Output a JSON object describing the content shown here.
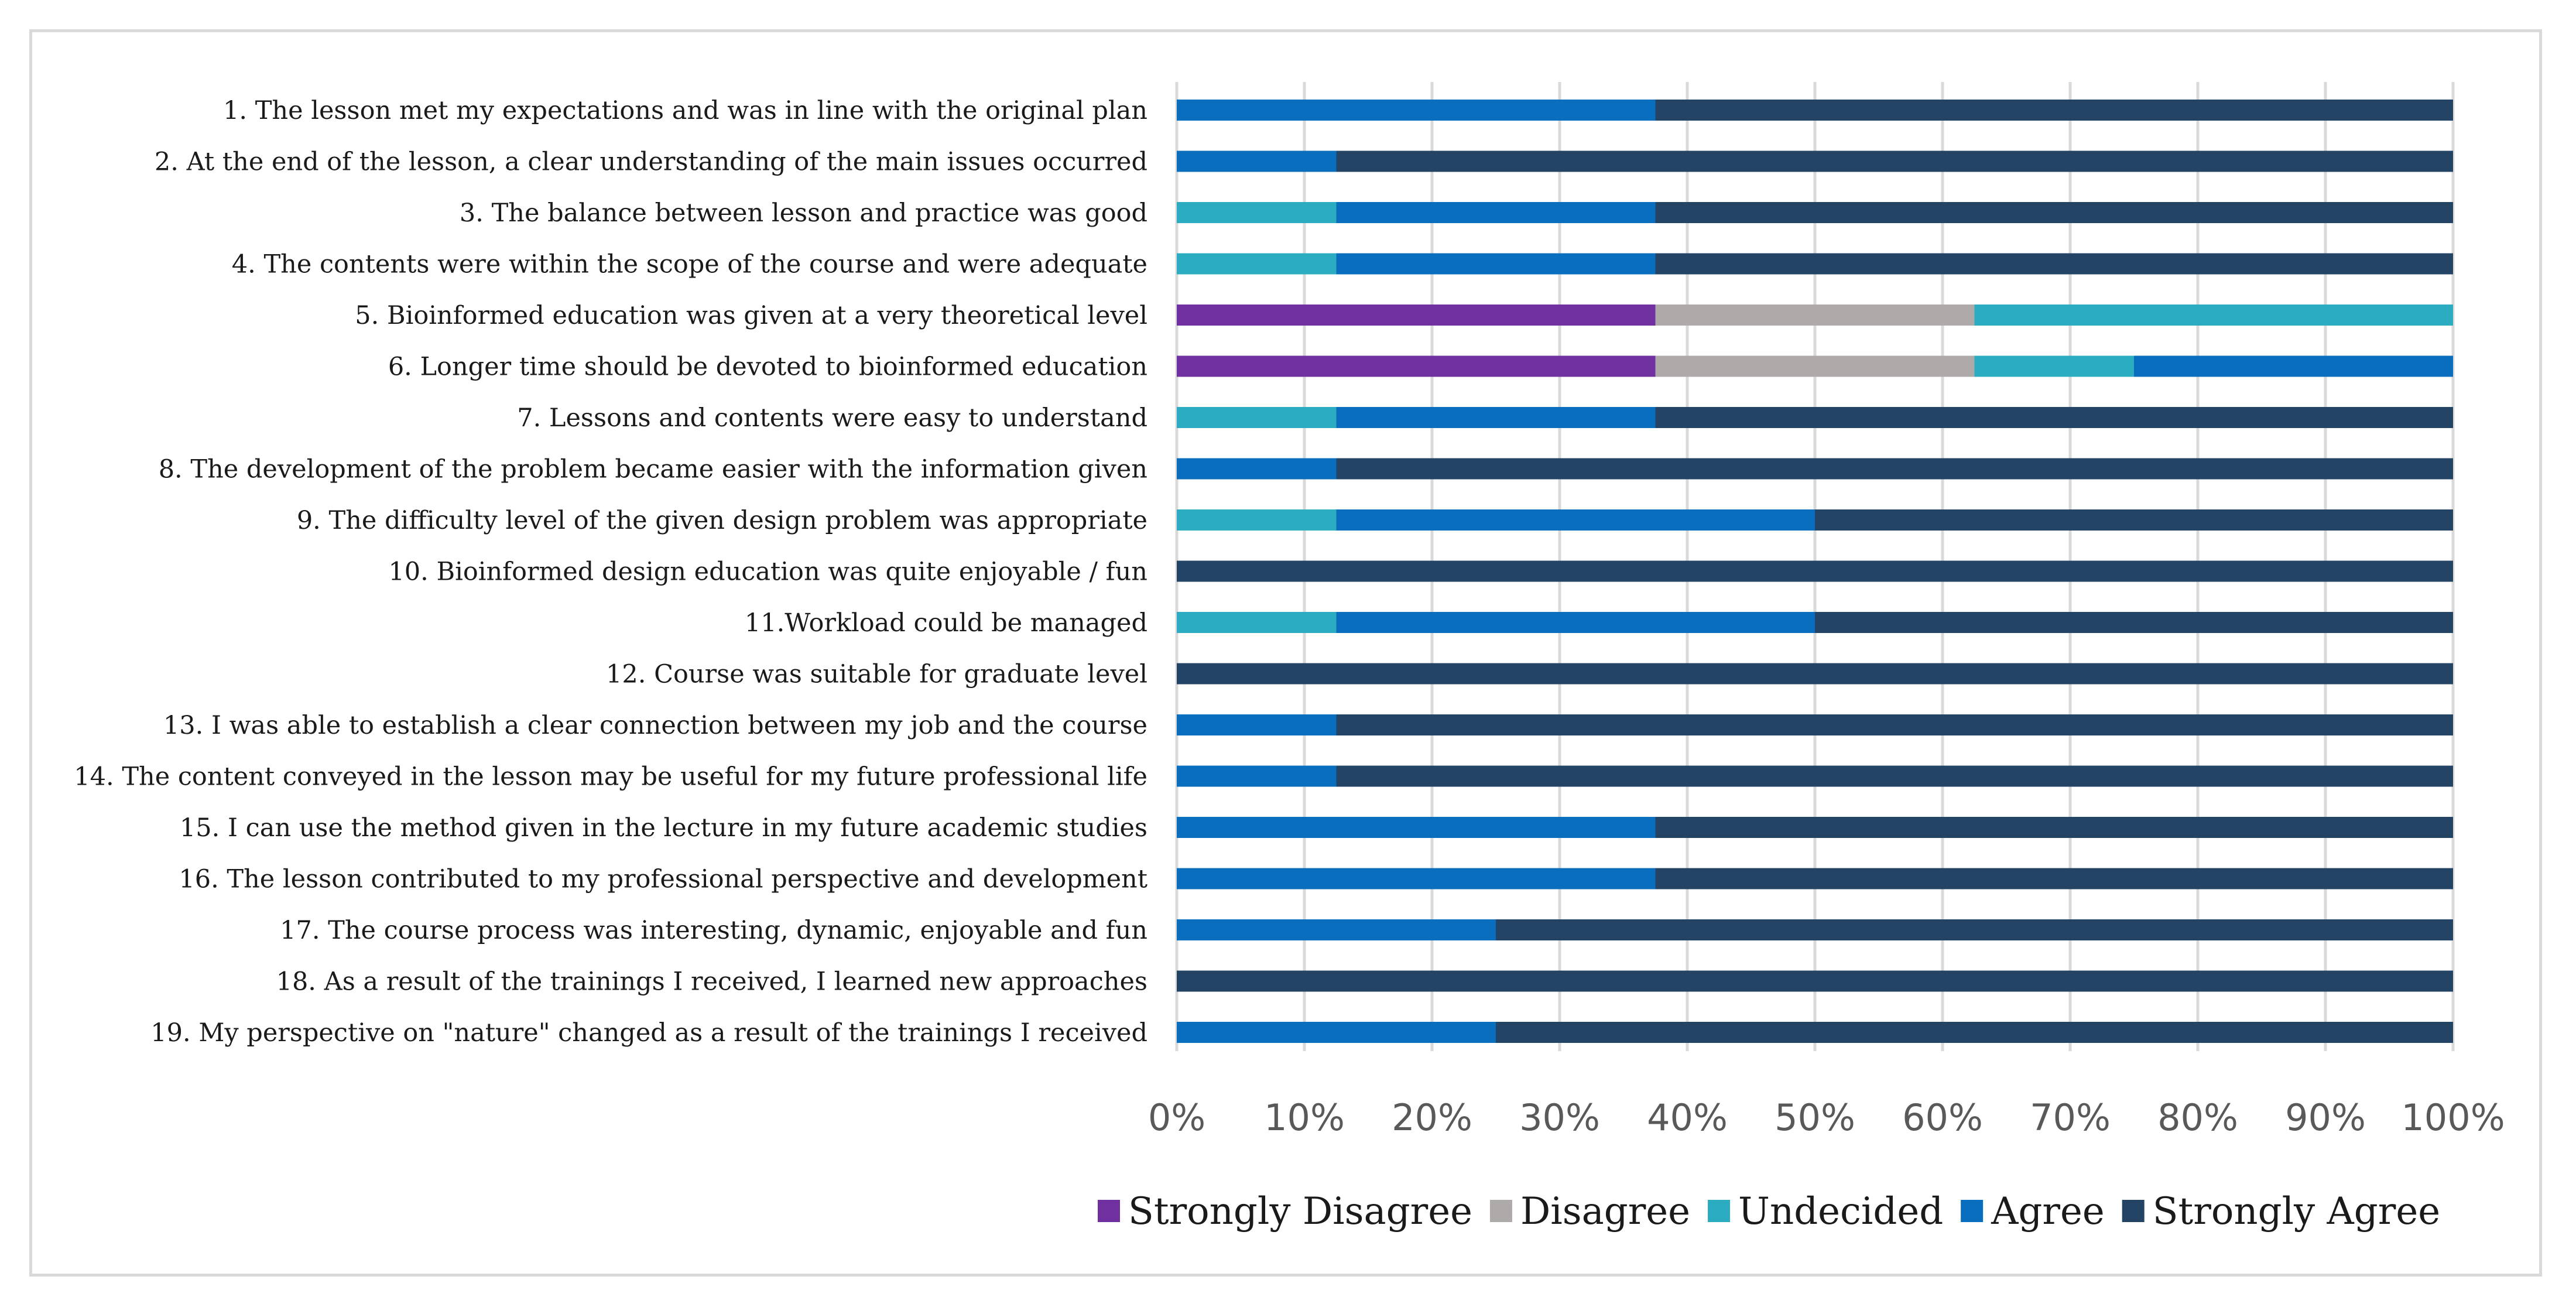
{
  "chart_data": {
    "type": "bar",
    "orientation": "horizontal",
    "stacked": "percent",
    "categories": [
      "1. The lesson met my expectations and was in line with the original plan",
      "2. At the end of the lesson, a clear understanding of the main issues occurred",
      "3. The balance between lesson and practice was good",
      "4. The contents were within the scope of the course and were adequate",
      "5. Bioinformed education was given at a very theoretical level",
      "6. Longer time should be devoted to bioinformed education",
      "7. Lessons and contents were easy to understand",
      "8. The development of the problem became easier with the information given",
      "9. The difficulty level of the given design problem was appropriate",
      "10. Bioinformed design education was quite enjoyable / fun",
      "11.Workload could be managed",
      "12. Course was suitable for graduate level",
      "13. I was able to establish a clear connection between my job and the course",
      "14. The content conveyed in the lesson may be useful for my future professional life",
      "15. I can use the method given in the lecture in my future academic studies",
      "16. The lesson contributed to my professional perspective and development",
      "17. The course process was interesting, dynamic, enjoyable and fun",
      "18. As a result of the trainings I received, I learned new approaches",
      "19. My perspective on \"nature\" changed as a result of the trainings I received"
    ],
    "series": [
      {
        "name": "Strongly Disagree",
        "color": "#7030a0",
        "values": [
          0,
          0,
          0,
          0,
          37.5,
          37.5,
          0,
          0,
          0,
          0,
          0,
          0,
          0,
          0,
          0,
          0,
          0,
          0,
          0
        ]
      },
      {
        "name": "Disagree",
        "color": "#aeaaaa",
        "values": [
          0,
          0,
          0,
          0,
          25,
          25,
          0,
          0,
          0,
          0,
          0,
          0,
          0,
          0,
          0,
          0,
          0,
          0,
          0
        ]
      },
      {
        "name": "Undecided",
        "color": "#2bacc0",
        "values": [
          0,
          0,
          12.5,
          12.5,
          37.5,
          12.5,
          12.5,
          0,
          12.5,
          0,
          12.5,
          0,
          0,
          0,
          0,
          0,
          0,
          0,
          0
        ]
      },
      {
        "name": "Agree",
        "color": "#0a6ebf",
        "values": [
          37.5,
          12.5,
          25,
          25,
          0,
          25,
          25,
          12.5,
          37.5,
          0,
          37.5,
          0,
          12.5,
          12.5,
          37.5,
          37.5,
          25,
          0,
          25
        ]
      },
      {
        "name": "Strongly Agree",
        "color": "#244466",
        "values": [
          62.5,
          87.5,
          62.5,
          62.5,
          0,
          0,
          62.5,
          87.5,
          50,
          100,
          50,
          100,
          87.5,
          87.5,
          62.5,
          62.5,
          75,
          100,
          75
        ]
      }
    ],
    "xlim": [
      0,
      100
    ],
    "x_ticks": [
      "0%",
      "10%",
      "20%",
      "30%",
      "40%",
      "50%",
      "60%",
      "70%",
      "80%",
      "90%",
      "100%"
    ],
    "grid": "vertical",
    "legend_position": "bottom",
    "gridline_color": "#d9d9d9"
  }
}
